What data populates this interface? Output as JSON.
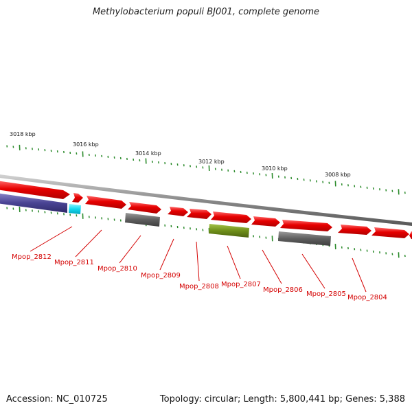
{
  "title": "Methylobacterium populi BJ001, complete genome",
  "accession": "Accession: NC_010725",
  "topology": "Topology: circular; Length: 5,800,441 bp; Genes: 5,388",
  "colors": {
    "forward_gene": "#e60000",
    "reverse_gene_grey": "#666666",
    "reverse_gene_olive": "#6f8f1a",
    "reverse_gene_purple": "#4a4494",
    "reverse_gene_cyan": "#10d8f0",
    "backbone": "#888888",
    "tick": "#2a8a2a",
    "label_line": "#d40000"
  },
  "ticks": [
    {
      "label": "3018 kbp"
    },
    {
      "label": "3016 kbp"
    },
    {
      "label": "3014 kbp"
    },
    {
      "label": "3012 kbp"
    },
    {
      "label": "3010 kbp"
    },
    {
      "label": "3008 kbp"
    }
  ],
  "gene_labels": [
    {
      "label": "Mpop_2812"
    },
    {
      "label": "Mpop_2811"
    },
    {
      "label": "Mpop_2810"
    },
    {
      "label": "Mpop_2809"
    },
    {
      "label": "Mpop_2808"
    },
    {
      "label": "Mpop_2807"
    },
    {
      "label": "Mpop_2806"
    },
    {
      "label": "Mpop_2805"
    },
    {
      "label": "Mpop_2804"
    }
  ]
}
